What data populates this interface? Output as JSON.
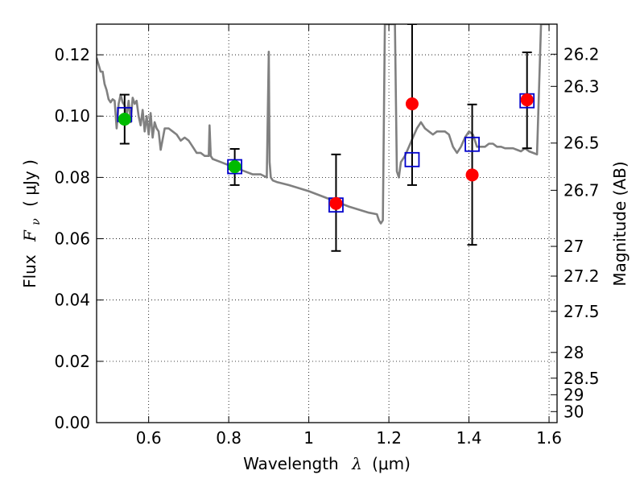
{
  "chart_data": {
    "type": "scatter",
    "xlabel_text": "Wavelength",
    "xlabel_symbol": "λ",
    "xlabel_unit": "(μm)",
    "ylabel_text": "Flux",
    "ylabel_symbol_main": "F",
    "ylabel_symbol_sub": "ν",
    "ylabel_unit": "( μJy )",
    "ylabel_right": "Magnitude (AB)",
    "xlim": [
      0.47,
      1.62
    ],
    "ylim": [
      0.0,
      0.13
    ],
    "grid": true,
    "grid_style": "dotted",
    "x_ticks": [
      0.6,
      0.8,
      1.0,
      1.2,
      1.4,
      1.6
    ],
    "x_tick_labels": [
      "0.6",
      "0.8",
      "1",
      "1.2",
      "1.4",
      "1.6"
    ],
    "y_ticks": [
      0.0,
      0.02,
      0.04,
      0.06,
      0.08,
      0.1,
      0.12
    ],
    "y_tick_labels": [
      "0.00",
      "0.02",
      "0.04",
      "0.06",
      "0.08",
      "0.10",
      "0.12"
    ],
    "right_ticks": [
      {
        "flux": 0.1202,
        "label": "26.2"
      },
      {
        "flux": 0.1097,
        "label": "26.3"
      },
      {
        "flux": 0.0912,
        "label": "26.5"
      },
      {
        "flux": 0.0758,
        "label": "26.7"
      },
      {
        "flux": 0.0575,
        "label": "27"
      },
      {
        "flux": 0.0478,
        "label": "27.2"
      },
      {
        "flux": 0.0363,
        "label": "27.5"
      },
      {
        "flux": 0.0229,
        "label": "28"
      },
      {
        "flux": 0.0145,
        "label": "28.5"
      },
      {
        "flux": 0.0091,
        "label": "29"
      },
      {
        "flux": 0.0036,
        "label": "30"
      }
    ],
    "series": [
      {
        "name": "model_spectrum",
        "kind": "line",
        "color": "#808080",
        "x": [
          0.47,
          0.48,
          0.485,
          0.49,
          0.495,
          0.5,
          0.505,
          0.51,
          0.515,
          0.52,
          0.525,
          0.53,
          0.535,
          0.54,
          0.545,
          0.55,
          0.555,
          0.56,
          0.565,
          0.57,
          0.575,
          0.58,
          0.585,
          0.59,
          0.595,
          0.6,
          0.605,
          0.61,
          0.615,
          0.62,
          0.625,
          0.63,
          0.64,
          0.65,
          0.66,
          0.67,
          0.68,
          0.69,
          0.7,
          0.71,
          0.72,
          0.73,
          0.74,
          0.75,
          0.752,
          0.755,
          0.76,
          0.78,
          0.8,
          0.82,
          0.84,
          0.86,
          0.88,
          0.895,
          0.9,
          0.902,
          0.905,
          0.91,
          0.92,
          0.95,
          1.0,
          1.05,
          1.1,
          1.15,
          1.17,
          1.175,
          1.18,
          1.185,
          1.19,
          1.2,
          1.21,
          1.215,
          1.22,
          1.225,
          1.23,
          1.24,
          1.25,
          1.26,
          1.27,
          1.28,
          1.29,
          1.3,
          1.31,
          1.32,
          1.33,
          1.34,
          1.35,
          1.36,
          1.37,
          1.38,
          1.39,
          1.4,
          1.41,
          1.42,
          1.43,
          1.44,
          1.45,
          1.46,
          1.47,
          1.48,
          1.49,
          1.5,
          1.51,
          1.52,
          1.53,
          1.54,
          1.55,
          1.56,
          1.57,
          1.58,
          1.59,
          1.6
        ],
        "y": [
          0.119,
          0.1145,
          0.1145,
          0.1105,
          0.1085,
          0.1055,
          0.1045,
          0.1055,
          0.105,
          0.096,
          0.104,
          0.107,
          0.1045,
          0.1035,
          0.1,
          0.105,
          0.098,
          0.106,
          0.104,
          0.105,
          0.1,
          0.097,
          0.102,
          0.095,
          0.1,
          0.094,
          0.101,
          0.093,
          0.098,
          0.096,
          0.095,
          0.089,
          0.096,
          0.096,
          0.095,
          0.094,
          0.092,
          0.093,
          0.092,
          0.09,
          0.088,
          0.088,
          0.087,
          0.087,
          0.097,
          0.087,
          0.086,
          0.085,
          0.084,
          0.083,
          0.082,
          0.081,
          0.081,
          0.08,
          0.121,
          0.085,
          0.08,
          0.079,
          0.0785,
          0.0775,
          0.0755,
          0.073,
          0.0705,
          0.0685,
          0.068,
          0.066,
          0.065,
          0.066,
          0.13,
          0.13,
          0.13,
          0.13,
          0.082,
          0.08,
          0.085,
          0.087,
          0.09,
          0.093,
          0.096,
          0.098,
          0.096,
          0.095,
          0.094,
          0.095,
          0.095,
          0.095,
          0.094,
          0.09,
          0.088,
          0.09,
          0.093,
          0.095,
          0.094,
          0.09,
          0.09,
          0.09,
          0.091,
          0.091,
          0.09,
          0.09,
          0.0895,
          0.0895,
          0.0895,
          0.089,
          0.0885,
          0.0895,
          0.0885,
          0.088,
          0.0875,
          0.13,
          0.13,
          0.13
        ]
      },
      {
        "name": "model_photometry",
        "kind": "open_square",
        "color": "#0000cc",
        "x": [
          0.54,
          0.815,
          1.068,
          1.258,
          1.408,
          1.545
        ],
        "y": [
          0.1005,
          0.0835,
          0.071,
          0.0858,
          0.0908,
          0.105
        ]
      },
      {
        "name": "observed_optical",
        "kind": "filled_circle",
        "color": "#00bb00",
        "x": [
          0.54,
          0.815
        ],
        "y": [
          0.099,
          0.0835
        ],
        "yerr_low": [
          0.091,
          0.0775
        ],
        "yerr_high": [
          0.107,
          0.0893
        ]
      },
      {
        "name": "observed_nir",
        "kind": "filled_circle",
        "color": "#ff0000",
        "x": [
          1.068,
          1.258,
          1.408,
          1.545
        ],
        "y": [
          0.0715,
          0.104,
          0.0808,
          0.1053
        ],
        "yerr_low": [
          0.056,
          0.0775,
          0.058,
          0.0895
        ],
        "yerr_high": [
          0.0875,
          0.13,
          0.1038,
          0.1208
        ]
      }
    ]
  }
}
